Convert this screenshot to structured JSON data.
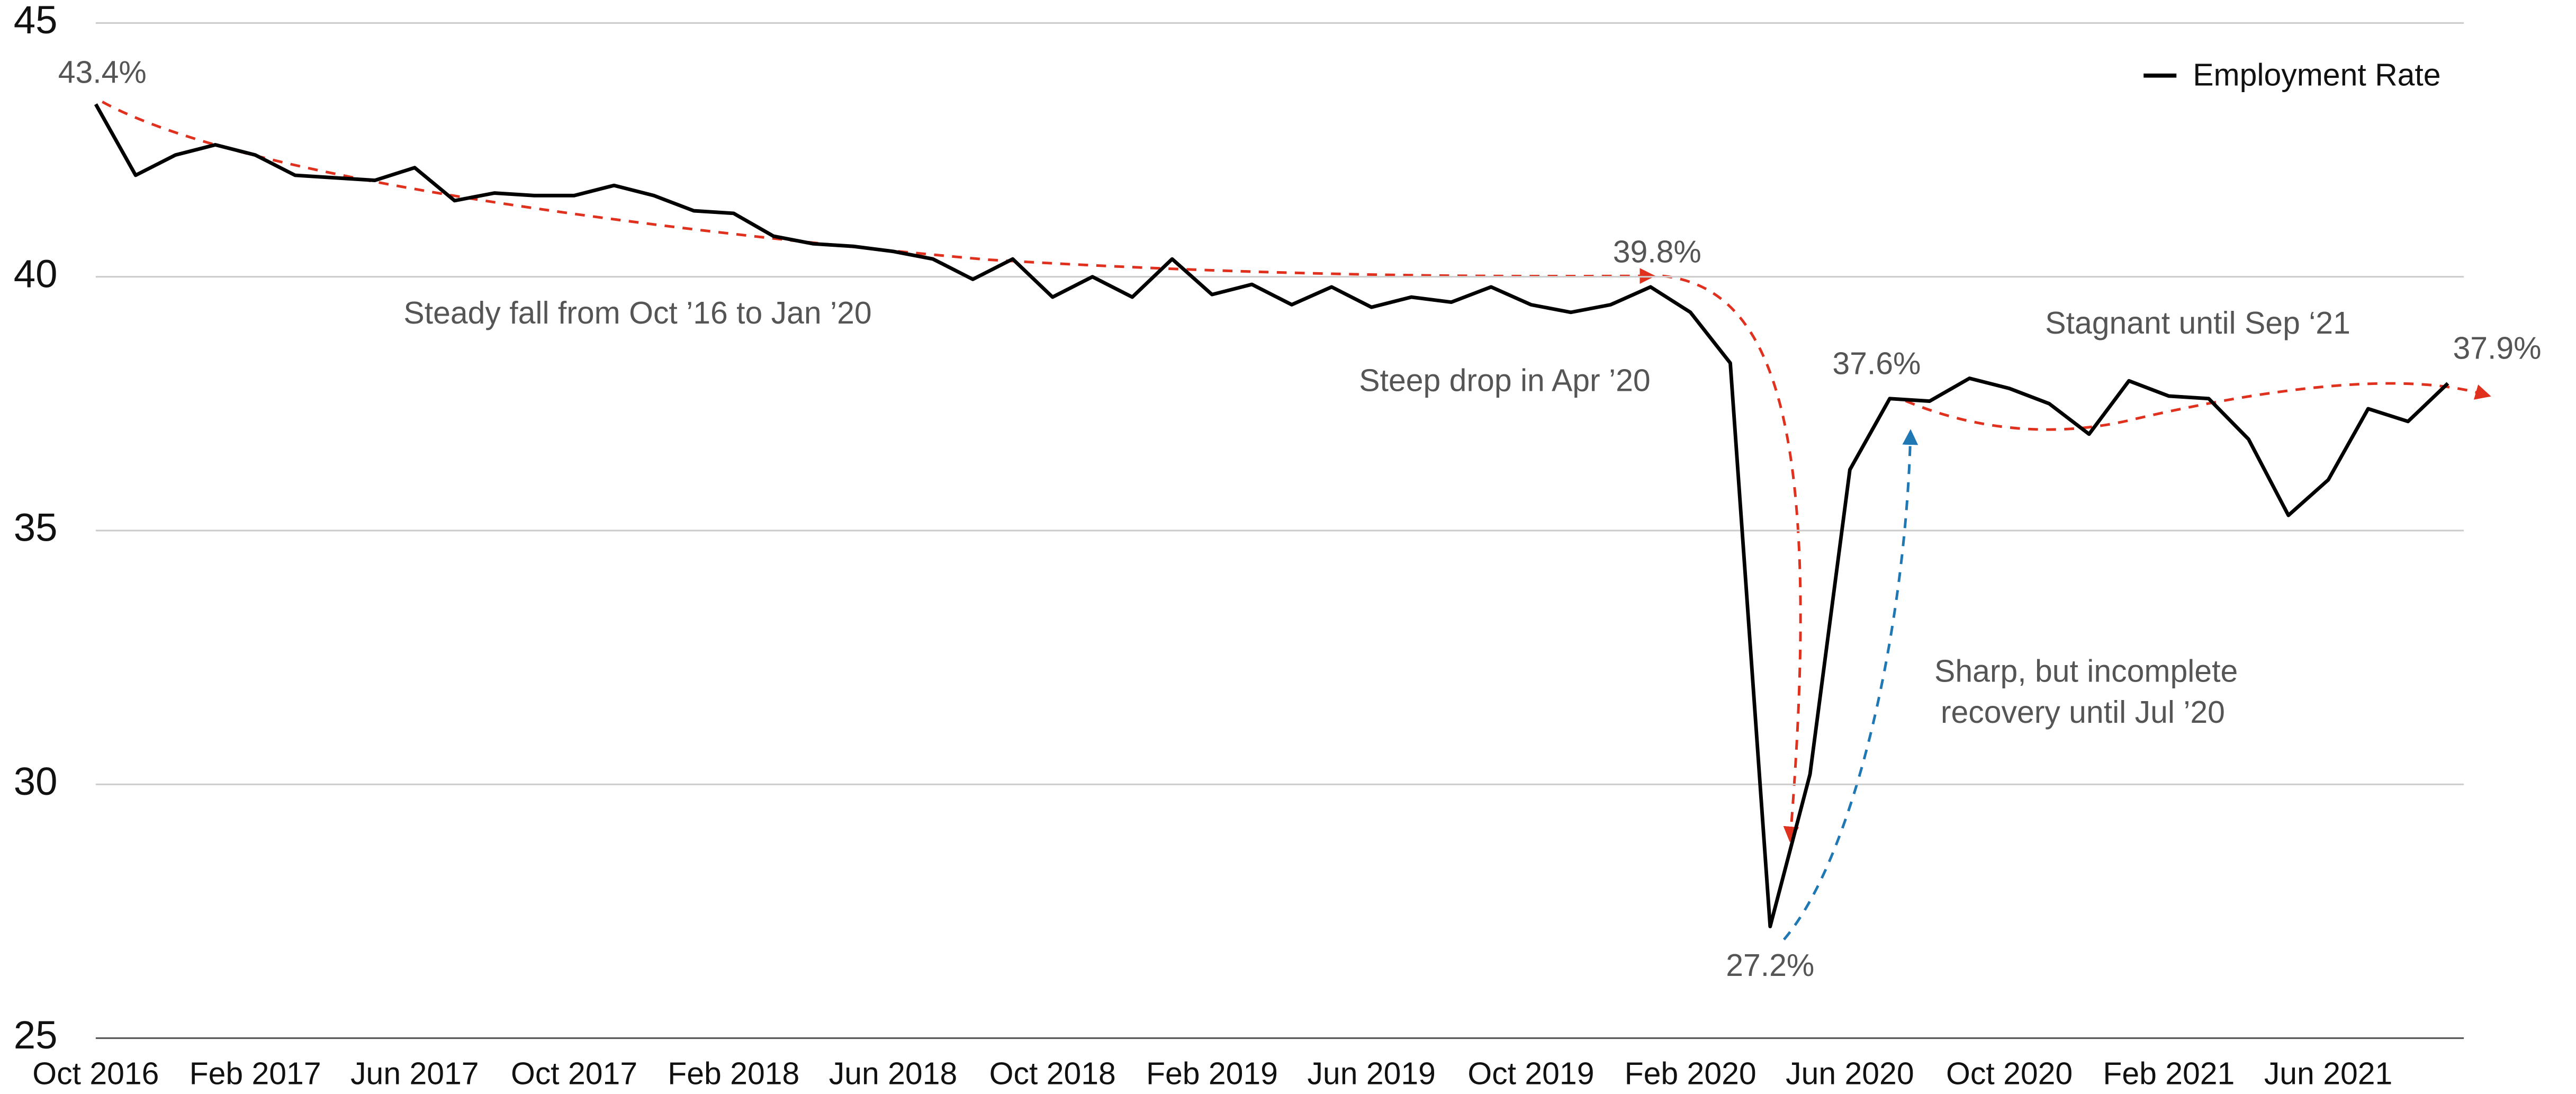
{
  "chart_data": {
    "type": "line",
    "categories": [
      "Oct 2016",
      null,
      null,
      null,
      "Feb 2017",
      null,
      null,
      null,
      "Jun 2017",
      null,
      null,
      null,
      "Oct 2017",
      null,
      null,
      null,
      "Feb 2018",
      null,
      null,
      null,
      "Jun 2018",
      null,
      null,
      null,
      "Oct 2018",
      null,
      null,
      null,
      "Feb 2019",
      null,
      null,
      null,
      "Jun 2019",
      null,
      null,
      null,
      "Oct 2019",
      null,
      null,
      null,
      "Feb 2020",
      null,
      null,
      null,
      "Jun 2020",
      null,
      null,
      null,
      "Oct 2020",
      null,
      null,
      null,
      "Feb 2021",
      null,
      null,
      null,
      "Jun 2021",
      null,
      null,
      null
    ],
    "series": [
      {
        "name": "Employment Rate",
        "color": "#000000",
        "values": [
          43.4,
          42.0,
          42.4,
          42.6,
          42.4,
          42.0,
          41.95,
          41.9,
          42.15,
          41.5,
          41.65,
          41.6,
          41.6,
          41.8,
          41.6,
          41.3,
          41.25,
          40.8,
          40.65,
          40.6,
          40.5,
          40.35,
          39.95,
          40.35,
          39.6,
          40.0,
          39.6,
          40.35,
          39.65,
          39.85,
          39.45,
          39.8,
          39.4,
          39.6,
          39.5,
          39.8,
          39.45,
          39.3,
          39.45,
          39.8,
          39.3,
          38.3,
          27.2,
          30.2,
          36.2,
          37.6,
          37.55,
          38.0,
          37.8,
          37.5,
          36.9,
          37.95,
          37.65,
          37.6,
          36.8,
          35.3,
          36.0,
          37.4,
          37.15,
          37.9
        ],
        "value_labels": [
          "43.4%",
          null,
          null,
          null,
          null,
          null,
          null,
          null,
          null,
          null,
          null,
          null,
          null,
          null,
          null,
          null,
          null,
          null,
          null,
          null,
          null,
          null,
          null,
          null,
          null,
          null,
          null,
          null,
          null,
          null,
          null,
          null,
          null,
          null,
          null,
          null,
          null,
          null,
          null,
          "39.8%",
          null,
          null,
          "27.2%",
          null,
          null,
          "37.6%",
          null,
          null,
          null,
          null,
          null,
          null,
          null,
          null,
          null,
          null,
          null,
          null,
          null,
          "37.9%"
        ]
      }
    ],
    "ylim": [
      25,
      45
    ],
    "yticks": [
      25,
      30,
      35,
      40,
      45
    ],
    "grid": true,
    "legend": "top-right",
    "annotations": [
      "Steady fall from Oct ’16 to Jan ’20",
      "Steep drop in Apr ’20",
      "Sharp, but incomplete",
      "recovery until Jul ’20",
      "Stagnant until Sep ‘21"
    ]
  }
}
